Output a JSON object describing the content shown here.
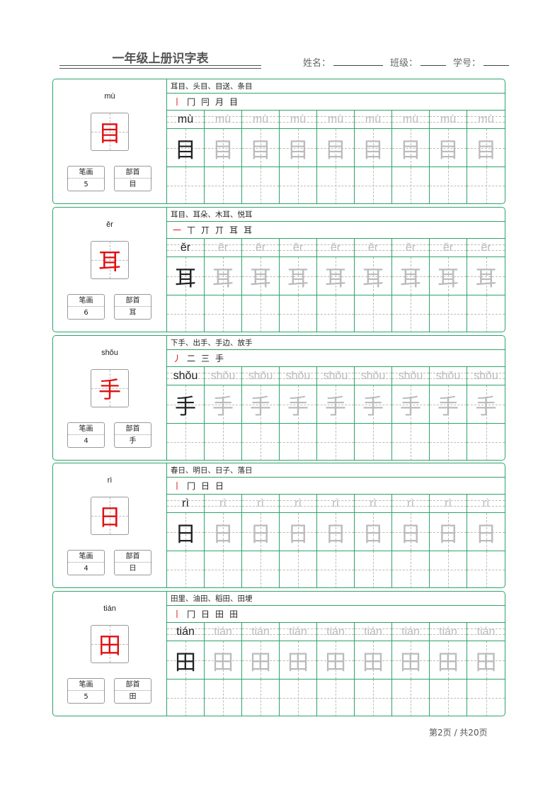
{
  "header": {
    "title": "一年级上册识字表",
    "name_label": "姓名：",
    "class_label": "班级：",
    "id_label": "学号："
  },
  "labels": {
    "strokes": "笔画",
    "radical": "部首"
  },
  "cards": [
    {
      "pinyin": "mù",
      "char": "目",
      "stroke_count": "5",
      "radical": "目",
      "words": "耳目、头目、目送、条目",
      "stroke_order": [
        "丨",
        "冂",
        "冃",
        "月",
        "目"
      ]
    },
    {
      "pinyin": "ěr",
      "char": "耳",
      "stroke_count": "6",
      "radical": "耳",
      "words": "耳目、耳朵、木耳、悦耳",
      "stroke_order": [
        "一",
        "丅",
        "丌",
        "丌",
        "耳",
        "耳"
      ]
    },
    {
      "pinyin": "shǒu",
      "char": "手",
      "stroke_count": "4",
      "radical": "手",
      "words": "下手、出手、手边、放手",
      "stroke_order": [
        "丿",
        "二",
        "三",
        "手"
      ]
    },
    {
      "pinyin": "rì",
      "char": "日",
      "stroke_count": "4",
      "radical": "日",
      "words": "春日、明日、日子、落日",
      "stroke_order": [
        "丨",
        "冂",
        "日",
        "日"
      ]
    },
    {
      "pinyin": "tián",
      "char": "田",
      "stroke_count": "5",
      "radical": "田",
      "words": "田里、油田、稻田、田埂",
      "stroke_order": [
        "丨",
        "冂",
        "日",
        "田",
        "田"
      ]
    }
  ],
  "footer": "第2页 / 共20页"
}
